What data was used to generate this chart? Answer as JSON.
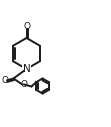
{
  "bg_color": "#ffffff",
  "line_color": "#1a1a1a",
  "line_width": 1.4,
  "font_size": 6.5,
  "figsize": [
    1.11,
    1.27
  ],
  "dpi": 100,
  "N_label": "N",
  "O_ketone": "O",
  "O_carb": "O",
  "O_ester": "O"
}
